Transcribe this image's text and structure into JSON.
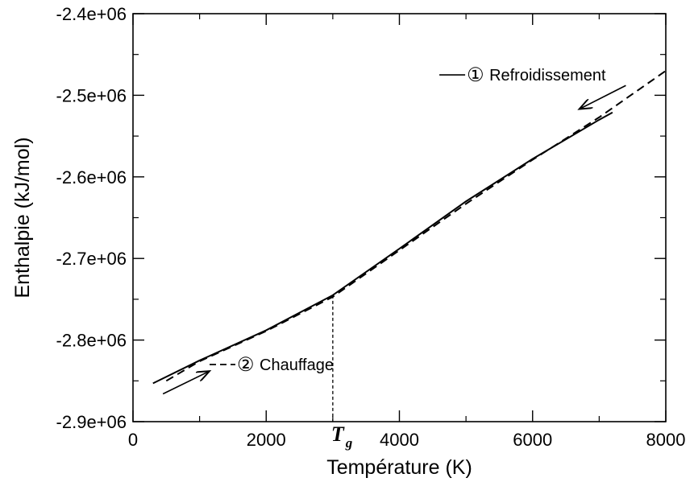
{
  "chart_data": {
    "type": "line",
    "xlabel": "Température (K)",
    "ylabel": "Enthalpie (kJ/mol)",
    "xlim": [
      0,
      8000
    ],
    "ylim": [
      -2900000,
      -2400000
    ],
    "x_ticks": [
      0,
      2000,
      4000,
      6000,
      8000
    ],
    "x_tick_labels": [
      "0",
      "2000",
      "4000",
      "6000",
      "8000"
    ],
    "y_ticks": [
      -2900000,
      -2800000,
      -2700000,
      -2600000,
      -2500000,
      -2400000
    ],
    "y_tick_labels": [
      "-2.9e+06",
      "-2.8e+06",
      "-2.7e+06",
      "-2.6e+06",
      "-2.5e+06",
      "-2.4e+06"
    ],
    "grid": false,
    "series": [
      {
        "name": "Refroidissement",
        "marker": "①",
        "style": "solid",
        "x": [
          300,
          1000,
          2000,
          3000,
          4000,
          5000,
          6000,
          7000,
          7200
        ],
        "y": [
          -2853000,
          -2825000,
          -2788000,
          -2745000,
          -2688000,
          -2630000,
          -2578000,
          -2530000,
          -2521000
        ]
      },
      {
        "name": "Chauffage",
        "marker": "②",
        "style": "dashed",
        "x": [
          500,
          1000,
          2000,
          3000,
          4000,
          5000,
          6000,
          7000,
          8000
        ],
        "y": [
          -2850000,
          -2826000,
          -2789000,
          -2747000,
          -2690000,
          -2633000,
          -2579000,
          -2527000,
          -2470000
        ]
      }
    ],
    "annotations": {
      "tg": {
        "label": "T",
        "subscript": "g",
        "x": 3000,
        "y": -2745000
      },
      "cooling_arrow": {
        "from": [
          7400,
          -2488000
        ],
        "to": [
          6700,
          -2517000
        ]
      },
      "heating_arrow": {
        "from": [
          450,
          -2866000
        ],
        "to": [
          1150,
          -2838000
        ]
      }
    },
    "legend_entries": [
      {
        "label": "Refroidissement",
        "marker": "①",
        "style": "solid",
        "anchor": [
          4600,
          -2475000
        ]
      },
      {
        "label": "Chauffage",
        "marker": "②",
        "style": "dashed",
        "anchor": [
          1150,
          -2830000
        ]
      }
    ],
    "colors": {
      "line": "#000000",
      "background": "#ffffff"
    }
  }
}
